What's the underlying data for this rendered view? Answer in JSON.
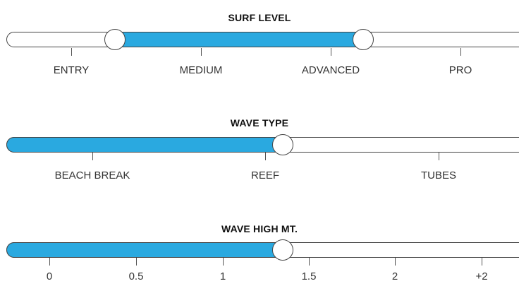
{
  "surf_level": {
    "title": "SURF LEVEL",
    "labels": [
      "ENTRY",
      "MEDIUM",
      "ADVANCED",
      "PRO"
    ],
    "range_start": "ENTRY/MEDIUM",
    "range_end": "ADVANCED"
  },
  "wave_type": {
    "title": "WAVE TYPE",
    "labels": [
      "BEACH BREAK",
      "REEF",
      "TUBES"
    ],
    "selected": "REEF"
  },
  "wave_height": {
    "title": "WAVE HIGH MT.",
    "labels": [
      "0",
      "0.5",
      "1",
      "1.5",
      "2",
      "+2"
    ],
    "value_approx": 1.35
  },
  "colors": {
    "fill": "#2aa9e0",
    "track_border": "#444444",
    "title": "#111111",
    "label": "#333333"
  }
}
